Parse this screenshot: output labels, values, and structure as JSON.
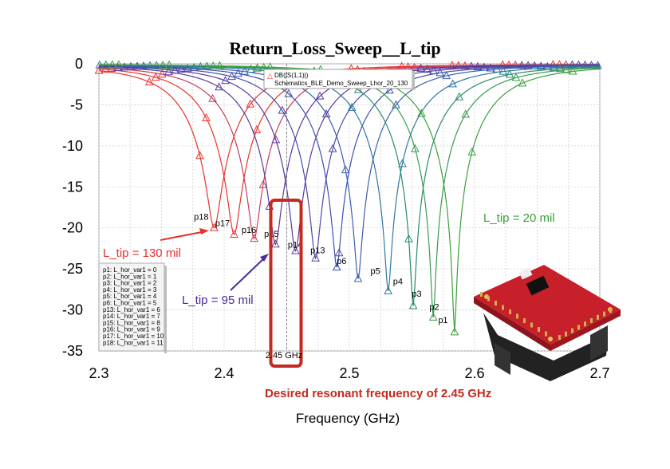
{
  "chart_data": {
    "type": "line",
    "title": "Return_Loss_Sweep__L_tip",
    "xlabel": "Frequency (GHz)",
    "ylabel": "",
    "xlim": [
      2.3,
      2.7
    ],
    "ylim": [
      -35,
      0
    ],
    "x_ticks": [
      "2.3",
      "2.4",
      "2.5",
      "2.6",
      "2.7"
    ],
    "y_ticks": [
      "0",
      "-5",
      "-10",
      "-15",
      "-20",
      "-25",
      "-30",
      "-35"
    ],
    "grid": true,
    "legend": {
      "position": "top-center",
      "symbol": "△",
      "lines": [
        "DB(|S(1,1)|)",
        "Schematics_BLE_Demo_Sweep_Lhor_20_130"
      ]
    },
    "param_legend": {
      "position": "bottom-left",
      "entries": [
        "p1: L_hor_var1 = 0",
        "p2: L_hor_var1 = 1",
        "p3: L_hor_var1 = 2",
        "p4: L_hor_var1 = 3",
        "p5: L_hor_var1 = 4",
        "p6: L_hor_var1 = 5",
        "p13: L_hor_var1 = 6",
        "p14: L_hor_var1 = 7",
        "p15: L_hor_var1 = 8",
        "p16: L_hor_var1 = 9",
        "p17: L_hor_var1 = 10",
        "p18: L_hor_var1 = 11"
      ]
    },
    "series": [
      {
        "marker": "p18",
        "f0": 2.392,
        "min_db": -20.0,
        "color": "#e8322e",
        "label_pos": [
          2.381,
          -19.2
        ]
      },
      {
        "marker": "p17",
        "f0": 2.408,
        "min_db": -20.8,
        "color": "#e8322e",
        "label_pos": [
          2.398,
          -20.0
        ]
      },
      {
        "marker": "p16",
        "f0": 2.424,
        "min_db": -21.3,
        "color": "#c83c5a",
        "label_pos": [
          2.419,
          -20.8
        ]
      },
      {
        "marker": "p15",
        "f0": 2.441,
        "min_db": -22.0,
        "color": "#5b3a9c",
        "label_pos": [
          2.437,
          -21.3
        ]
      },
      {
        "marker": "p14",
        "f0": 2.457,
        "min_db": -22.8,
        "color": "#5b3a9c",
        "label_pos": [
          2.456,
          -22.6
        ]
      },
      {
        "marker": "p13",
        "f0": 2.473,
        "min_db": -23.7,
        "color": "#4a4aa8",
        "label_pos": [
          2.474,
          -23.3
        ]
      },
      {
        "marker": "p6",
        "f0": 2.49,
        "min_db": -24.8,
        "color": "#3e4fb0",
        "label_pos": [
          2.495,
          -24.6
        ]
      },
      {
        "marker": "p5",
        "f0": 2.507,
        "min_db": -26.2,
        "color": "#3b5fae",
        "label_pos": [
          2.522,
          -25.8
        ]
      },
      {
        "marker": "p4",
        "f0": 2.531,
        "min_db": -27.7,
        "color": "#2e78a0",
        "label_pos": [
          2.54,
          -27.1
        ]
      },
      {
        "marker": "p3",
        "f0": 2.551,
        "min_db": -29.5,
        "color": "#2a8a6a",
        "label_pos": [
          2.555,
          -28.6
        ]
      },
      {
        "marker": "p2",
        "f0": 2.567,
        "min_db": -30.9,
        "color": "#3a9a50",
        "label_pos": [
          2.569,
          -30.2
        ]
      },
      {
        "marker": "p1",
        "f0": 2.584,
        "min_db": -32.7,
        "color": "#3aa03a",
        "label_pos": [
          2.576,
          -31.8
        ]
      }
    ],
    "annotations": [
      {
        "text": "L_tip = 130 mil",
        "color": "#e8322e"
      },
      {
        "text": "L_tip = 95 mil",
        "color": "#4a2c9c"
      },
      {
        "text": "L_tip = 20 mil",
        "color": "#3aa03a"
      },
      {
        "text": "2.45 GHz",
        "color": "#000000"
      },
      {
        "text": "Desired resonant frequency of 2.45 GHz",
        "color": "#c42a1e"
      }
    ],
    "highlight_x": 2.45,
    "highlight_color": "#c42a1e"
  }
}
